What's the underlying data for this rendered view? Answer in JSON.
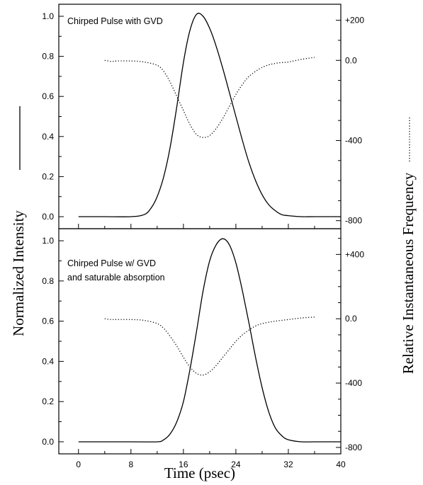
{
  "chart_data": {
    "type": "line",
    "xlabel": "Time (psec)",
    "ylabel_left": "Normalized Intensity",
    "ylabel_right": "Relative Instantaneous Frequency",
    "xlim": [
      -3,
      40
    ],
    "x_ticks": [
      0,
      8,
      16,
      24,
      32,
      40
    ],
    "panels": [
      {
        "annotation": [
          "Chirped Pulse with GVD"
        ],
        "left_ylim": [
          -0.06,
          1.06
        ],
        "left_ticks": [
          "0.0",
          "0.2",
          "0.4",
          "0.6",
          "0.8",
          "1.0"
        ],
        "right_ylim": [
          -840,
          280
        ],
        "right_ticks": [
          {
            "v": 200,
            "label": "+200"
          },
          {
            "v": 0,
            "label": "0.0"
          },
          {
            "v": -400,
            "label": "-400"
          },
          {
            "v": -800,
            "label": "-800"
          }
        ],
        "series": [
          {
            "style": "solid",
            "axis": "left",
            "x": [
              0,
              4,
              8,
              10,
              11,
              12,
              13,
              14,
              15,
              16,
              17,
              18,
              19,
              20,
              21,
              22,
              23,
              24,
              25,
              26,
              27,
              28,
              29,
              30,
              31,
              32,
              34,
              36,
              40
            ],
            "y": [
              0.0,
              0.0,
              0.0,
              0.01,
              0.04,
              0.1,
              0.2,
              0.35,
              0.55,
              0.77,
              0.93,
              1.01,
              1.0,
              0.94,
              0.85,
              0.74,
              0.62,
              0.5,
              0.38,
              0.27,
              0.18,
              0.11,
              0.06,
              0.03,
              0.01,
              0.005,
              0.0,
              0.0,
              0.0
            ]
          },
          {
            "style": "dotted",
            "axis": "right",
            "x": [
              4,
              5,
              6,
              8,
              10,
              12,
              13,
              14,
              15,
              16,
              17,
              18,
              19,
              20,
              21,
              22,
              23,
              24,
              25,
              26,
              28,
              30,
              32,
              34,
              36
            ],
            "y": [
              0,
              -5,
              -3,
              -3,
              -8,
              -25,
              -55,
              -110,
              -180,
              -250,
              -320,
              -370,
              -385,
              -375,
              -340,
              -290,
              -230,
              -170,
              -120,
              -80,
              -35,
              -15,
              -8,
              5,
              15
            ]
          }
        ]
      },
      {
        "annotation": [
          "Chirped Pulse w/ GVD",
          "and saturable absorption"
        ],
        "left_ylim": [
          -0.06,
          1.06
        ],
        "left_ticks": [
          "0.0",
          "0.2",
          "0.4",
          "0.6",
          "0.8",
          "1.0"
        ],
        "right_ylim": [
          -840,
          560
        ],
        "right_ticks": [
          {
            "v": 400,
            "label": "+400"
          },
          {
            "v": 0,
            "label": "0.0"
          },
          {
            "v": -400,
            "label": "-400"
          },
          {
            "v": -800,
            "label": "-800"
          }
        ],
        "series": [
          {
            "style": "solid",
            "axis": "left",
            "x": [
              0,
              8,
              12,
              13,
              14,
              15,
              16,
              17,
              18,
              19,
              20,
              21,
              22,
              23,
              24,
              25,
              26,
              27,
              28,
              29,
              30,
              31,
              32,
              34,
              36,
              40
            ],
            "y": [
              0.0,
              0.0,
              0.0,
              0.01,
              0.04,
              0.1,
              0.2,
              0.36,
              0.55,
              0.75,
              0.9,
              0.98,
              1.01,
              0.98,
              0.89,
              0.75,
              0.59,
              0.42,
              0.27,
              0.15,
              0.07,
              0.03,
              0.01,
              0.0,
              0.0,
              0.0
            ]
          },
          {
            "style": "dotted",
            "axis": "right",
            "x": [
              4,
              5,
              6,
              8,
              10,
              12,
              13,
              14,
              15,
              16,
              17,
              18,
              19,
              20,
              21,
              22,
              23,
              24,
              25,
              26,
              27,
              28,
              30,
              32,
              34,
              36
            ],
            "y": [
              0,
              -5,
              -5,
              -5,
              -10,
              -30,
              -60,
              -110,
              -170,
              -240,
              -300,
              -340,
              -350,
              -330,
              -290,
              -240,
              -190,
              -140,
              -100,
              -70,
              -45,
              -30,
              -15,
              -5,
              5,
              10
            ]
          }
        ]
      }
    ]
  }
}
